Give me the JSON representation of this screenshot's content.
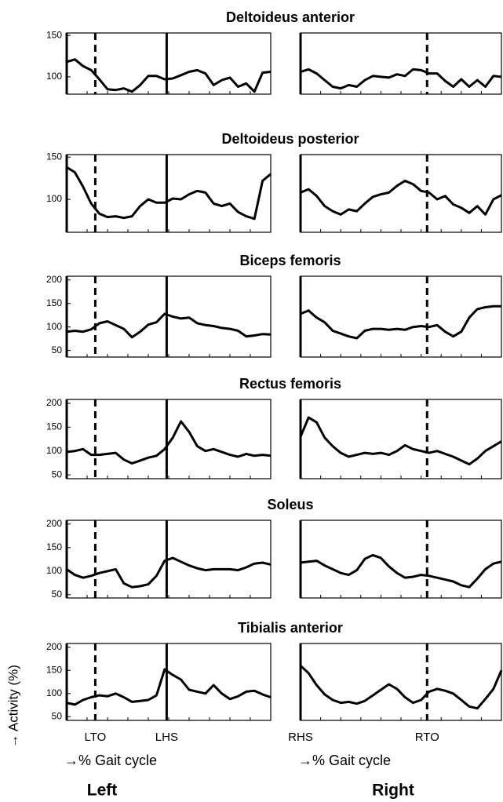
{
  "figure": {
    "ylabel": "→ Activity (%)"
  },
  "chart_data": [
    {
      "type": "line",
      "title": "Deltoideus anterior",
      "xlim": [
        0,
        100
      ],
      "ylim": [
        79,
        153
      ],
      "yticks": [
        100,
        150
      ],
      "color": "#000000",
      "values": [
        118,
        121,
        113,
        108,
        97,
        85,
        84,
        86,
        82,
        90,
        101,
        101,
        97,
        98,
        102,
        106,
        108,
        104,
        90,
        96,
        99,
        88,
        92,
        82,
        105,
        106
      ],
      "markers": [
        {
          "x": 14,
          "style": "dashed"
        },
        {
          "x": 49,
          "style": "solid"
        }
      ]
    },
    {
      "type": "line",
      "xlim": [
        0,
        100
      ],
      "ylim": [
        79,
        153
      ],
      "color": "#000000",
      "values": [
        106,
        109,
        104,
        96,
        88,
        86,
        90,
        88,
        96,
        101,
        100,
        99,
        103,
        101,
        109,
        108,
        104,
        104,
        95,
        88,
        97,
        88,
        96,
        88,
        101,
        100
      ],
      "markers": [
        {
          "x": 0,
          "style": "solid"
        },
        {
          "x": 63,
          "style": "dashed"
        }
      ]
    },
    {
      "type": "line",
      "title": "Deltoideus posterior",
      "xlim": [
        0,
        100
      ],
      "ylim": [
        61,
        153
      ],
      "yticks": [
        100,
        150
      ],
      "color": "#000000",
      "values": [
        138,
        132,
        115,
        95,
        83,
        79,
        80,
        78,
        80,
        92,
        100,
        96,
        96,
        101,
        100,
        106,
        110,
        108,
        95,
        92,
        95,
        85,
        80,
        77,
        122,
        130
      ],
      "markers": [
        {
          "x": 14,
          "style": "dashed"
        },
        {
          "x": 49,
          "style": "solid"
        }
      ]
    },
    {
      "type": "line",
      "xlim": [
        0,
        100
      ],
      "ylim": [
        61,
        153
      ],
      "color": "#000000",
      "values": [
        108,
        112,
        104,
        92,
        86,
        82,
        88,
        86,
        95,
        103,
        106,
        108,
        116,
        122,
        118,
        110,
        108,
        100,
        104,
        94,
        90,
        84,
        92,
        82,
        100,
        105
      ],
      "markers": [
        {
          "x": 0,
          "style": "solid"
        },
        {
          "x": 63,
          "style": "dashed"
        }
      ]
    },
    {
      "type": "line",
      "title": "Biceps femoris",
      "xlim": [
        0,
        100
      ],
      "ylim": [
        36,
        208
      ],
      "yticks": [
        50,
        100,
        150,
        200
      ],
      "color": "#000000",
      "values": [
        90,
        92,
        90,
        95,
        108,
        112,
        104,
        96,
        78,
        90,
        105,
        110,
        128,
        122,
        118,
        120,
        108,
        104,
        102,
        98,
        96,
        92,
        80,
        82,
        85,
        84
      ],
      "markers": [
        {
          "x": 14,
          "style": "dashed"
        },
        {
          "x": 49,
          "style": "solid"
        }
      ]
    },
    {
      "type": "line",
      "xlim": [
        0,
        100
      ],
      "ylim": [
        36,
        208
      ],
      "color": "#000000",
      "values": [
        128,
        135,
        120,
        110,
        92,
        86,
        80,
        76,
        92,
        96,
        96,
        94,
        96,
        94,
        100,
        102,
        100,
        104,
        90,
        80,
        90,
        120,
        138,
        142,
        144,
        144
      ],
      "markers": [
        {
          "x": 0,
          "style": "solid"
        },
        {
          "x": 63,
          "style": "dashed"
        }
      ]
    },
    {
      "type": "line",
      "title": "Rectus femoris",
      "xlim": [
        0,
        100
      ],
      "ylim": [
        42,
        208
      ],
      "yticks": [
        50,
        100,
        150,
        200
      ],
      "color": "#000000",
      "values": [
        98,
        100,
        104,
        92,
        92,
        94,
        96,
        82,
        74,
        80,
        86,
        90,
        104,
        128,
        162,
        140,
        110,
        100,
        104,
        98,
        92,
        88,
        94,
        90,
        92,
        90
      ],
      "markers": [
        {
          "x": 14,
          "style": "dashed"
        },
        {
          "x": 49,
          "style": "solid"
        }
      ]
    },
    {
      "type": "line",
      "xlim": [
        0,
        100
      ],
      "ylim": [
        42,
        208
      ],
      "color": "#000000",
      "values": [
        130,
        170,
        160,
        128,
        110,
        96,
        88,
        92,
        96,
        94,
        96,
        92,
        100,
        112,
        104,
        100,
        96,
        100,
        94,
        88,
        80,
        72,
        84,
        100,
        110,
        120
      ],
      "markers": [
        {
          "x": 0,
          "style": "solid"
        },
        {
          "x": 63,
          "style": "dashed"
        }
      ]
    },
    {
      "type": "line",
      "title": "Soleus",
      "xlim": [
        0,
        100
      ],
      "ylim": [
        43,
        208
      ],
      "yticks": [
        50,
        100,
        150,
        200
      ],
      "color": "#000000",
      "values": [
        104,
        92,
        86,
        90,
        96,
        100,
        104,
        74,
        66,
        68,
        72,
        90,
        122,
        128,
        120,
        112,
        106,
        102,
        104,
        104,
        104,
        102,
        108,
        116,
        118,
        114
      ],
      "markers": [
        {
          "x": 14,
          "style": "dashed"
        },
        {
          "x": 49,
          "style": "solid"
        }
      ]
    },
    {
      "type": "line",
      "xlim": [
        0,
        100
      ],
      "ylim": [
        43,
        208
      ],
      "color": "#000000",
      "values": [
        118,
        120,
        122,
        112,
        104,
        96,
        92,
        102,
        126,
        134,
        128,
        110,
        96,
        86,
        88,
        92,
        90,
        86,
        82,
        78,
        70,
        66,
        84,
        104,
        116,
        120
      ],
      "markers": [
        {
          "x": 0,
          "style": "solid"
        },
        {
          "x": 63,
          "style": "dashed"
        }
      ]
    },
    {
      "type": "line",
      "title": "Tibialis anterior",
      "xlim": [
        0,
        100
      ],
      "ylim": [
        42,
        208
      ],
      "yticks": [
        50,
        100,
        150,
        200
      ],
      "color": "#000000",
      "values": [
        80,
        76,
        86,
        92,
        96,
        94,
        100,
        92,
        82,
        84,
        86,
        96,
        152,
        140,
        130,
        108,
        104,
        100,
        118,
        100,
        88,
        94,
        104,
        106,
        98,
        92
      ],
      "markers": [
        {
          "x": 14,
          "style": "dashed",
          "label": "LTO"
        },
        {
          "x": 49,
          "style": "solid",
          "label": "LHS"
        }
      ],
      "xlabel": "→% Gait cycle",
      "caption": "Left"
    },
    {
      "type": "line",
      "xlim": [
        0,
        100
      ],
      "ylim": [
        42,
        208
      ],
      "color": "#000000",
      "values": [
        160,
        144,
        118,
        98,
        86,
        80,
        82,
        78,
        84,
        96,
        108,
        120,
        110,
        92,
        80,
        86,
        104,
        110,
        106,
        100,
        86,
        72,
        68,
        88,
        110,
        150
      ],
      "markers": [
        {
          "x": 0,
          "style": "solid",
          "label": "RHS"
        },
        {
          "x": 63,
          "style": "dashed",
          "label": "RTO"
        }
      ],
      "xlabel": "→% Gait cycle",
      "caption": "Right"
    }
  ]
}
